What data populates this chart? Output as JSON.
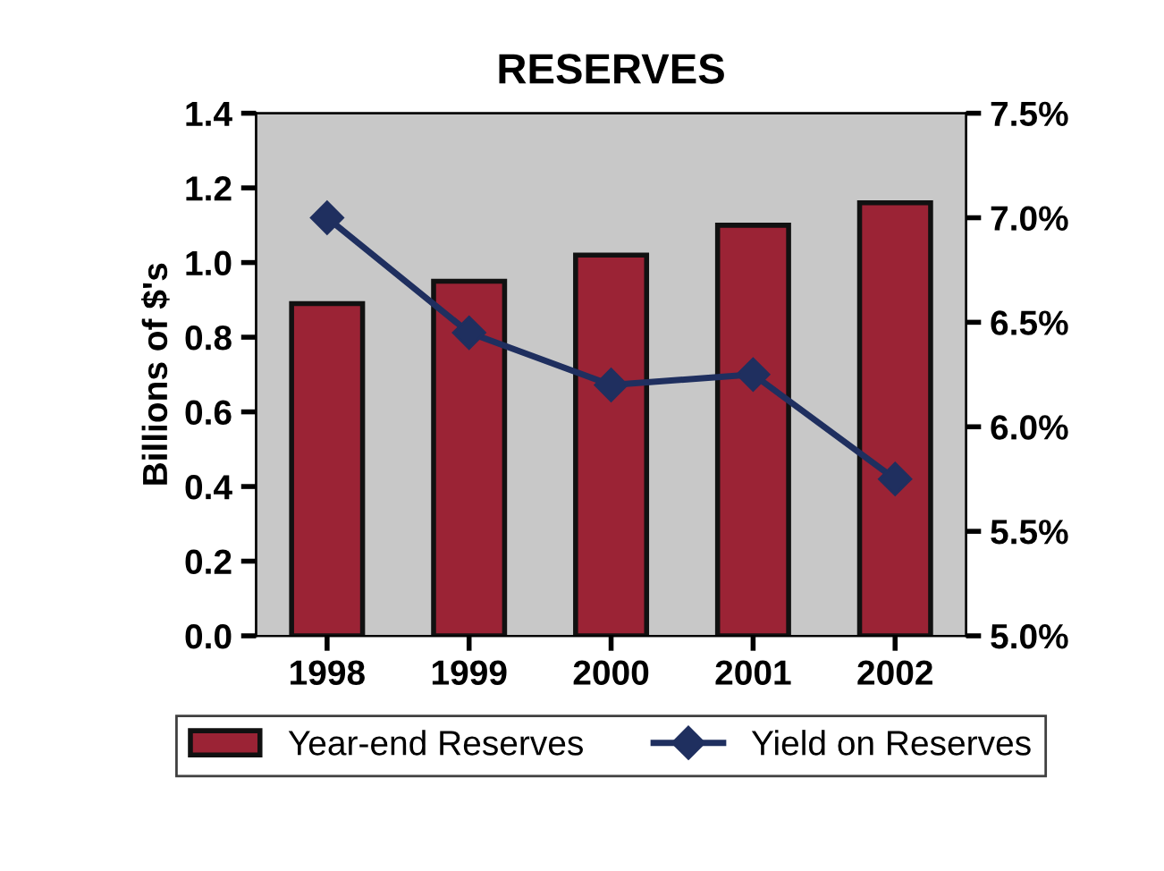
{
  "chart_data": {
    "type": "bar",
    "title": "RESERVES",
    "ylabel": "Billions of $'s",
    "categories": [
      "1998",
      "1999",
      "2000",
      "2001",
      "2002"
    ],
    "series": [
      {
        "name": "Year-end Reserves",
        "color": "#9b2335",
        "values": [
          0.89,
          0.95,
          1.02,
          1.1,
          1.16
        ]
      },
      {
        "name": "Yield on Reserves",
        "type": "line",
        "axis": "y2",
        "color": "#1f2f5f",
        "marker": "diamond",
        "values": [
          7.0,
          6.45,
          6.2,
          6.25,
          5.75
        ]
      }
    ],
    "ylim": [
      0,
      1.4
    ],
    "yticks": [
      {
        "value": 0,
        "label": "0.0"
      },
      {
        "value": 0.2,
        "label": "0.2"
      },
      {
        "value": 0.4,
        "label": "0.4"
      },
      {
        "value": 0.6,
        "label": "0.6"
      },
      {
        "value": 0.8,
        "label": "0.8"
      },
      {
        "value": 1.0,
        "label": "1.0"
      },
      {
        "value": 1.2,
        "label": "1.2"
      },
      {
        "value": 1.4,
        "label": "1.4"
      }
    ],
    "y2lim": [
      5.0,
      7.5
    ],
    "y2ticks": [
      {
        "value": 5.0,
        "label": "5.0%"
      },
      {
        "value": 5.5,
        "label": "5.5%"
      },
      {
        "value": 6.0,
        "label": "6.0%"
      },
      {
        "value": 6.5,
        "label": "6.5%"
      },
      {
        "value": 7.0,
        "label": "7.0%"
      },
      {
        "value": 7.5,
        "label": "7.5%"
      }
    ],
    "grid": false,
    "legend": "bottom"
  }
}
